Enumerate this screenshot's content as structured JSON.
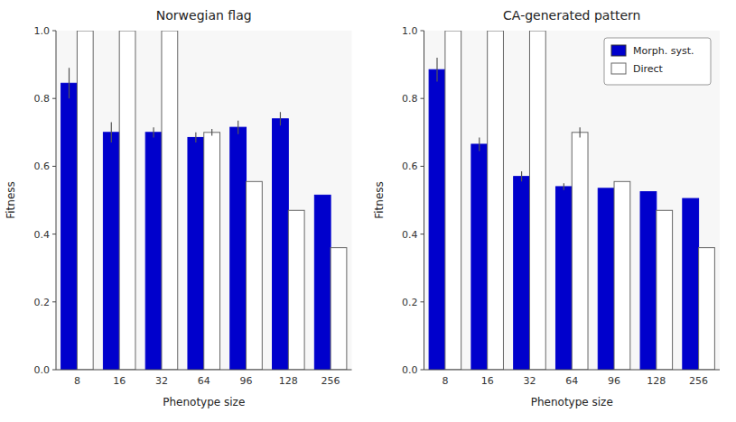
{
  "chart_data": [
    {
      "type": "bar",
      "title": "Norwegian flag",
      "x_label": "Phenotype size",
      "y_label": "Fitness",
      "categories": [
        "8",
        "16",
        "32",
        "64",
        "96",
        "128",
        "256"
      ],
      "series": [
        {
          "color": "#0000CC",
          "values": [
            0.845,
            0.7,
            0.7,
            0.685,
            0.715,
            0.74,
            0.515
          ],
          "errors": [
            0.045,
            0.03,
            0.015,
            0.015,
            0.02,
            0.02,
            0.0
          ]
        },
        {
          "color": "#FFFFFF",
          "values": [
            1.0,
            1.0,
            1.0,
            0.7,
            0.555,
            0.47,
            0.36
          ],
          "errors": [
            0.0,
            0.0,
            0.0,
            0.01,
            0.0,
            0.0,
            0.0
          ]
        }
      ],
      "ylim": [
        0,
        1.0
      ],
      "yticks": [
        {
          "value": 0,
          "label": "0.0"
        },
        0.2,
        0.4,
        0.6,
        0.8,
        {
          "value": 1.0,
          "label": "1.0"
        }
      ],
      "grid": false
    },
    {
      "type": "bar",
      "title": "CA-generated pattern",
      "x_label": "Phenotype size",
      "y_label": "Fitness",
      "categories": [
        "8",
        "16",
        "32",
        "64",
        "96",
        "128",
        "256"
      ],
      "series": [
        {
          "name": "Morph. syst.",
          "color": "#0000CC",
          "values": [
            0.885,
            0.665,
            0.57,
            0.54,
            0.535,
            0.525,
            0.505
          ],
          "errors": [
            0.035,
            0.02,
            0.015,
            0.01,
            0.0,
            0.0,
            0.0
          ]
        },
        {
          "name": "Direct",
          "color": "#FFFFFF",
          "values": [
            1.0,
            1.0,
            1.0,
            0.7,
            0.555,
            0.47,
            0.36
          ],
          "errors": [
            0.0,
            0.0,
            0.0,
            0.015,
            0.0,
            0.0,
            0.0
          ]
        }
      ],
      "ylim": [
        0,
        1.0
      ],
      "yticks": [
        {
          "value": 0,
          "label": "0.0"
        },
        0.2,
        0.4,
        0.6,
        0.8,
        {
          "value": 1.0,
          "label": "1.0"
        }
      ],
      "grid": false,
      "legend": "upper right"
    }
  ]
}
